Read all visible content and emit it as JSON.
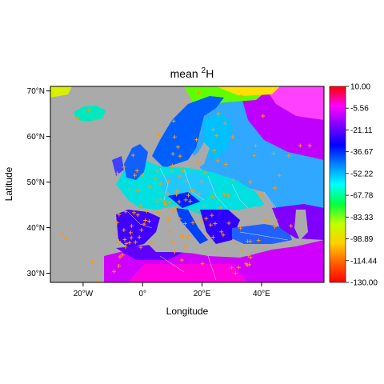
{
  "title": {
    "main": "mean",
    "superscript": "2",
    "symbol": "H"
  },
  "x_axis": {
    "label": "Longitude",
    "ticks": [
      "20°W",
      "0°",
      "20°E",
      "40°E"
    ],
    "tick_values": [
      -20,
      0,
      20,
      40
    ],
    "range": [
      -31,
      61
    ]
  },
  "y_axis": {
    "label": "Latitude",
    "ticks": [
      "30°N",
      "40°N",
      "50°N",
      "60°N",
      "70°N"
    ],
    "tick_values": [
      30,
      40,
      50,
      60,
      70
    ],
    "range": [
      28,
      71
    ]
  },
  "legend": {
    "labels": [
      "10.00",
      "-5.56",
      "-21.11",
      "-36.67",
      "-52.22",
      "-67.78",
      "-83.33",
      "-98.89",
      "-114.44",
      "-130.00"
    ],
    "range": [
      -130,
      10
    ],
    "colors": [
      "#ff0000",
      "#ff00ff",
      "#7f00ff",
      "#0000ff",
      "#0088ff",
      "#00ffff",
      "#00ff40",
      "#c0ff00",
      "#ffd000",
      "#ff6000",
      "#ff0000"
    ]
  },
  "colors": {
    "land_no_data": "#aaaaaa",
    "station_marker": "#ff9900",
    "borders": "#e0e0e0"
  },
  "chart_data": {
    "type": "heatmap",
    "title": "mean ²H",
    "xlabel": "Longitude",
    "ylabel": "Latitude",
    "xlim": [
      -31,
      61
    ],
    "ylim": [
      28,
      71
    ],
    "value_range": [
      -130,
      10
    ],
    "legend_placement": "right",
    "stations": [
      [
        -9.1,
        38.7
      ],
      [
        -8.6,
        41.1
      ],
      [
        -8.0,
        37.0
      ],
      [
        -6.0,
        37.4
      ],
      [
        -5.5,
        36.5
      ],
      [
        -4.4,
        36.7
      ],
      [
        -3.7,
        40.4
      ],
      [
        -2.9,
        43.3
      ],
      [
        -1.6,
        42.8
      ],
      [
        -0.4,
        39.5
      ],
      [
        2.2,
        41.4
      ],
      [
        0.9,
        41.6
      ],
      [
        -7.9,
        42.9
      ],
      [
        -5.7,
        43.5
      ],
      [
        -3.8,
        37.8
      ],
      [
        -6.3,
        39.5
      ],
      [
        -4.0,
        38.9
      ],
      [
        -1.1,
        37.9
      ],
      [
        -2.4,
        36.8
      ],
      [
        0.5,
        40.8
      ],
      [
        2.4,
        48.9
      ],
      [
        4.8,
        45.8
      ],
      [
        5.4,
        43.3
      ],
      [
        1.4,
        43.6
      ],
      [
        -0.6,
        44.8
      ],
      [
        -1.7,
        48.1
      ],
      [
        -4.5,
        48.4
      ],
      [
        -6.3,
        53.3
      ],
      [
        -8.5,
        51.9
      ],
      [
        -3.2,
        55.9
      ],
      [
        -1.9,
        52.5
      ],
      [
        -0.1,
        51.5
      ],
      [
        -2.6,
        51.5
      ],
      [
        4.9,
        52.4
      ],
      [
        4.4,
        50.8
      ],
      [
        6.1,
        49.6
      ],
      [
        7.6,
        47.6
      ],
      [
        8.5,
        47.4
      ],
      [
        6.2,
        46.2
      ],
      [
        7.3,
        45.7
      ],
      [
        8.7,
        50.1
      ],
      [
        11.6,
        48.1
      ],
      [
        13.4,
        52.5
      ],
      [
        10.0,
        53.6
      ],
      [
        9.7,
        52.4
      ],
      [
        12.4,
        51.3
      ],
      [
        14.4,
        50.1
      ],
      [
        16.4,
        48.2
      ],
      [
        15.4,
        47.1
      ],
      [
        11.4,
        47.3
      ],
      [
        17.1,
        48.1
      ],
      [
        19.0,
        47.5
      ],
      [
        21.0,
        52.2
      ],
      [
        19.9,
        50.1
      ],
      [
        18.6,
        54.4
      ],
      [
        12.6,
        55.7
      ],
      [
        10.2,
        56.2
      ],
      [
        18.1,
        59.3
      ],
      [
        11.9,
        57.7
      ],
      [
        10.8,
        59.9
      ],
      [
        5.3,
        60.4
      ],
      [
        10.4,
        63.4
      ],
      [
        14.4,
        67.3
      ],
      [
        18.9,
        69.6
      ],
      [
        25.5,
        65.0
      ],
      [
        24.9,
        60.2
      ],
      [
        27.7,
        62.9
      ],
      [
        24.1,
        56.9
      ],
      [
        25.3,
        54.7
      ],
      [
        23.7,
        61.5
      ],
      [
        28.0,
        53.9
      ],
      [
        30.5,
        50.5
      ],
      [
        37.6,
        55.8
      ],
      [
        30.3,
        59.9
      ],
      [
        36.2,
        50.0
      ],
      [
        49.1,
        55.8
      ],
      [
        40.5,
        64.5
      ],
      [
        44.0,
        56.3
      ],
      [
        39.7,
        47.2
      ],
      [
        46.0,
        51.5
      ],
      [
        53.0,
        58.0
      ],
      [
        56.2,
        58.0
      ],
      [
        33.1,
        68.9
      ],
      [
        38.0,
        58.0
      ],
      [
        44.5,
        48.7
      ],
      [
        26.1,
        44.4
      ],
      [
        23.6,
        46.8
      ],
      [
        27.6,
        47.2
      ],
      [
        28.9,
        47.0
      ],
      [
        20.5,
        44.8
      ],
      [
        23.3,
        42.7
      ],
      [
        21.4,
        42.0
      ],
      [
        19.8,
        41.3
      ],
      [
        18.4,
        43.9
      ],
      [
        16.0,
        45.8
      ],
      [
        14.5,
        46.1
      ],
      [
        12.3,
        45.7
      ],
      [
        11.3,
        44.5
      ],
      [
        9.2,
        45.5
      ],
      [
        7.7,
        45.1
      ],
      [
        8.9,
        44.4
      ],
      [
        10.4,
        43.7
      ],
      [
        12.5,
        41.9
      ],
      [
        14.3,
        40.9
      ],
      [
        16.9,
        41.1
      ],
      [
        15.6,
        38.2
      ],
      [
        13.4,
        38.1
      ],
      [
        15.1,
        37.5
      ],
      [
        9.1,
        39.2
      ],
      [
        8.7,
        41.9
      ],
      [
        14.5,
        35.9
      ],
      [
        10.2,
        36.8
      ],
      [
        10.8,
        34.7
      ],
      [
        3.1,
        36.8
      ],
      [
        -0.6,
        35.7
      ],
      [
        -5.8,
        35.8
      ],
      [
        -6.8,
        34.0
      ],
      [
        -7.6,
        33.6
      ],
      [
        -8.0,
        31.6
      ],
      [
        -9.6,
        30.4
      ],
      [
        13.2,
        32.9
      ],
      [
        20.1,
        32.1
      ],
      [
        29.9,
        31.2
      ],
      [
        31.2,
        30.0
      ],
      [
        32.3,
        31.3
      ],
      [
        34.8,
        32.1
      ],
      [
        35.2,
        31.8
      ],
      [
        35.5,
        33.9
      ],
      [
        36.3,
        33.5
      ],
      [
        35.9,
        31.9
      ],
      [
        36.2,
        37.0
      ],
      [
        32.9,
        39.9
      ],
      [
        29.0,
        41.0
      ],
      [
        27.1,
        38.4
      ],
      [
        30.7,
        36.9
      ],
      [
        35.3,
        37.0
      ],
      [
        39.0,
        37.2
      ],
      [
        44.5,
        40.2
      ],
      [
        41.6,
        41.6
      ],
      [
        44.8,
        41.7
      ],
      [
        49.9,
        40.4
      ],
      [
        25.1,
        35.3
      ],
      [
        23.7,
        37.9
      ],
      [
        22.9,
        40.6
      ],
      [
        21.7,
        38.2
      ],
      [
        33.4,
        35.2
      ],
      [
        24.4,
        40.9
      ],
      [
        26.5,
        39.1
      ],
      [
        -16.9,
        32.6
      ],
      [
        -25.7,
        37.7
      ],
      [
        -27.2,
        38.7
      ],
      [
        -15.4,
        28.1
      ],
      [
        -22.0,
        64.1
      ],
      [
        -21.9,
        64.0
      ],
      [
        -18.1,
        65.7
      ]
    ]
  }
}
